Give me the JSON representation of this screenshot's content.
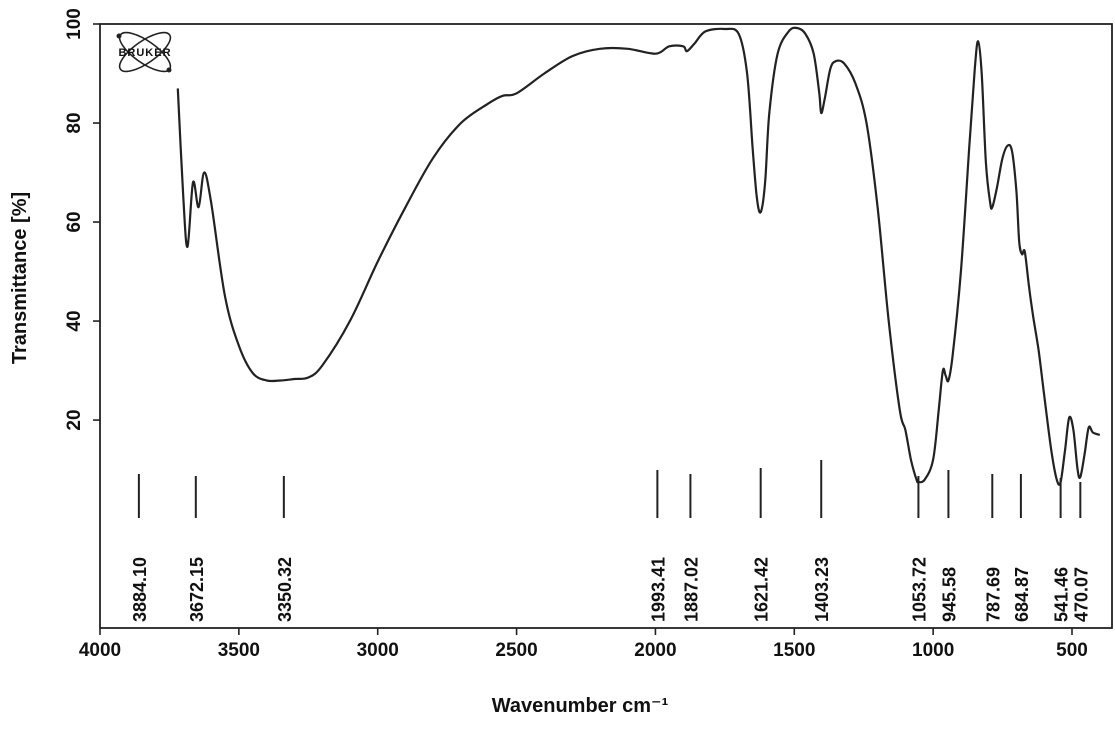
{
  "logo": {
    "text": "BRUKER"
  },
  "chart_data": {
    "type": "line",
    "title": "",
    "xlabel": "Wavenumber cm⁻¹",
    "ylabel": "Transmittance [%]",
    "xlim": [
      4000,
      400
    ],
    "ylim": [
      -22,
      100
    ],
    "x_reversed": true,
    "grid": false,
    "xticks": [
      4000,
      3500,
      3000,
      2500,
      2000,
      1500,
      1000,
      500
    ],
    "yticks": [
      20,
      40,
      60,
      80,
      100
    ],
    "series": [
      {
        "points": [
          [
            3720,
            87
          ],
          [
            3700,
            65
          ],
          [
            3685,
            55
          ],
          [
            3665,
            68
          ],
          [
            3645,
            63
          ],
          [
            3625,
            70
          ],
          [
            3600,
            64
          ],
          [
            3550,
            45
          ],
          [
            3500,
            35
          ],
          [
            3450,
            29.5
          ],
          [
            3400,
            28
          ],
          [
            3350,
            28
          ],
          [
            3300,
            28.3
          ],
          [
            3250,
            28.6
          ],
          [
            3200,
            31
          ],
          [
            3100,
            40
          ],
          [
            3000,
            52
          ],
          [
            2900,
            63
          ],
          [
            2800,
            73
          ],
          [
            2700,
            80
          ],
          [
            2600,
            84
          ],
          [
            2550,
            85.5
          ],
          [
            2500,
            86
          ],
          [
            2400,
            90
          ],
          [
            2300,
            93.5
          ],
          [
            2200,
            95
          ],
          [
            2100,
            95
          ],
          [
            2000,
            94
          ],
          [
            1950,
            95.5
          ],
          [
            1900,
            95.5
          ],
          [
            1887,
            94.5
          ],
          [
            1860,
            96
          ],
          [
            1820,
            98.5
          ],
          [
            1750,
            99
          ],
          [
            1700,
            98
          ],
          [
            1670,
            90
          ],
          [
            1650,
            75
          ],
          [
            1635,
            65
          ],
          [
            1621,
            62
          ],
          [
            1605,
            68
          ],
          [
            1590,
            82
          ],
          [
            1560,
            94
          ],
          [
            1520,
            98.5
          ],
          [
            1490,
            99.2
          ],
          [
            1460,
            98
          ],
          [
            1430,
            94
          ],
          [
            1410,
            86
          ],
          [
            1403,
            82
          ],
          [
            1390,
            85
          ],
          [
            1370,
            91
          ],
          [
            1350,
            92.5
          ],
          [
            1320,
            92
          ],
          [
            1280,
            88
          ],
          [
            1240,
            80
          ],
          [
            1200,
            63
          ],
          [
            1160,
            40
          ],
          [
            1120,
            22
          ],
          [
            1100,
            18
          ],
          [
            1080,
            12
          ],
          [
            1060,
            8
          ],
          [
            1053,
            7.5
          ],
          [
            1030,
            8
          ],
          [
            1000,
            12
          ],
          [
            980,
            22
          ],
          [
            965,
            30
          ],
          [
            955,
            29
          ],
          [
            945,
            28
          ],
          [
            930,
            33
          ],
          [
            900,
            50
          ],
          [
            870,
            75
          ],
          [
            850,
            91
          ],
          [
            838,
            96.5
          ],
          [
            825,
            90
          ],
          [
            810,
            72
          ],
          [
            795,
            64
          ],
          [
            787,
            63
          ],
          [
            770,
            67
          ],
          [
            750,
            73
          ],
          [
            730,
            75.5
          ],
          [
            715,
            74
          ],
          [
            700,
            66
          ],
          [
            690,
            56
          ],
          [
            680,
            53.5
          ],
          [
            670,
            54
          ],
          [
            655,
            47
          ],
          [
            640,
            41
          ],
          [
            620,
            34
          ],
          [
            600,
            25
          ],
          [
            575,
            14
          ],
          [
            555,
            8
          ],
          [
            541,
            7.5
          ],
          [
            525,
            14
          ],
          [
            510,
            20.5
          ],
          [
            495,
            18
          ],
          [
            480,
            10
          ],
          [
            470,
            8.5
          ],
          [
            455,
            13
          ],
          [
            440,
            18.5
          ],
          [
            425,
            17.5
          ],
          [
            400,
            17
          ]
        ]
      }
    ],
    "peaks": [
      {
        "label": "3884.10",
        "x": 3860
      },
      {
        "label": "3672.15",
        "x": 3655
      },
      {
        "label": "3350.32",
        "x": 3338
      },
      {
        "label": "1993.41",
        "x": 1993
      },
      {
        "label": "1887.02",
        "x": 1874
      },
      {
        "label": "1621.42",
        "x": 1621
      },
      {
        "label": "1403.23",
        "x": 1403
      },
      {
        "label": "1053.72",
        "x": 1053
      },
      {
        "label": "945.58",
        "x": 945
      },
      {
        "label": "787.69",
        "x": 787
      },
      {
        "label": "684.87",
        "x": 684
      },
      {
        "label": "541.46",
        "x": 541
      },
      {
        "label": "470.07",
        "x": 470
      }
    ]
  }
}
